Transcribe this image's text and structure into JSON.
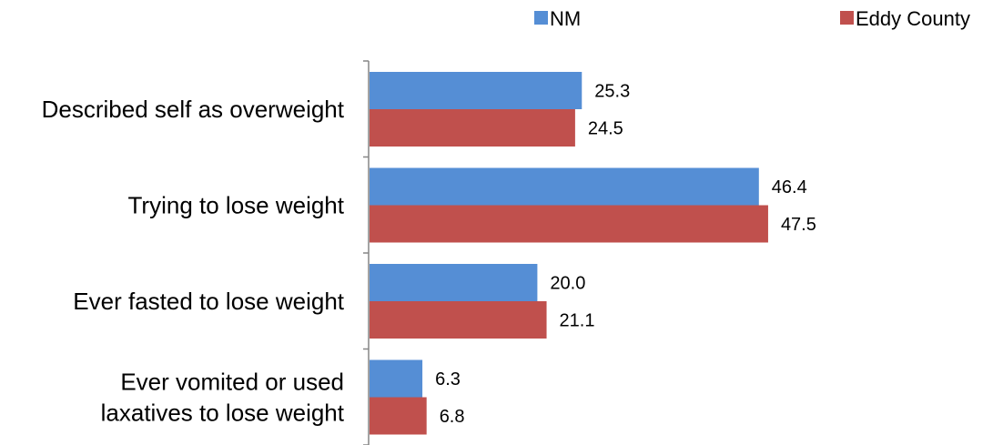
{
  "chart_data": {
    "type": "bar",
    "orientation": "horizontal",
    "categories": [
      [
        "Described self as overweight"
      ],
      [
        "Trying to lose weight"
      ],
      [
        "Ever fasted to lose weight"
      ],
      [
        "Ever vomited or used",
        "laxatives to lose weight"
      ]
    ],
    "series": [
      {
        "name": "NM",
        "color": "#558ED5",
        "values": [
          25.3,
          46.4,
          20.0,
          6.3
        ],
        "labels": [
          "25.3",
          "46.4",
          "20.0",
          "6.3"
        ]
      },
      {
        "name": "Eddy County",
        "color": "#C0504D",
        "values": [
          24.5,
          47.5,
          21.1,
          6.8
        ],
        "labels": [
          "24.5",
          "47.5",
          "21.1",
          "6.8"
        ]
      }
    ],
    "xlim": [
      0,
      60
    ],
    "legend": "top-right",
    "grid": false
  }
}
